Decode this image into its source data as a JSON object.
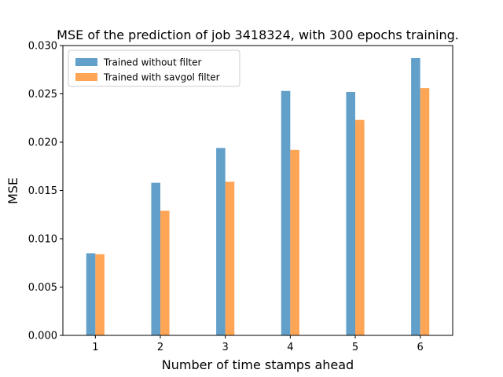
{
  "chart_data": {
    "type": "bar",
    "title": "MSE of the prediction of job 3418324, with 300 epochs training.",
    "xlabel": "Number of time stamps ahead",
    "ylabel": "MSE",
    "categories": [
      "1",
      "2",
      "3",
      "4",
      "5",
      "6"
    ],
    "ylim": [
      0,
      0.03
    ],
    "yticks": [
      "0.000",
      "0.005",
      "0.010",
      "0.015",
      "0.020",
      "0.025",
      "0.030"
    ],
    "grid": false,
    "legend_position": "top-left",
    "series": [
      {
        "name": "Trained without filter",
        "color": "#1f77b4",
        "values": [
          0.0085,
          0.0158,
          0.0194,
          0.0253,
          0.0252,
          0.0287
        ]
      },
      {
        "name": "Trained with savgol filter",
        "color": "#ff7f0e",
        "values": [
          0.0084,
          0.0129,
          0.0159,
          0.0192,
          0.0223,
          0.0256
        ]
      }
    ]
  }
}
